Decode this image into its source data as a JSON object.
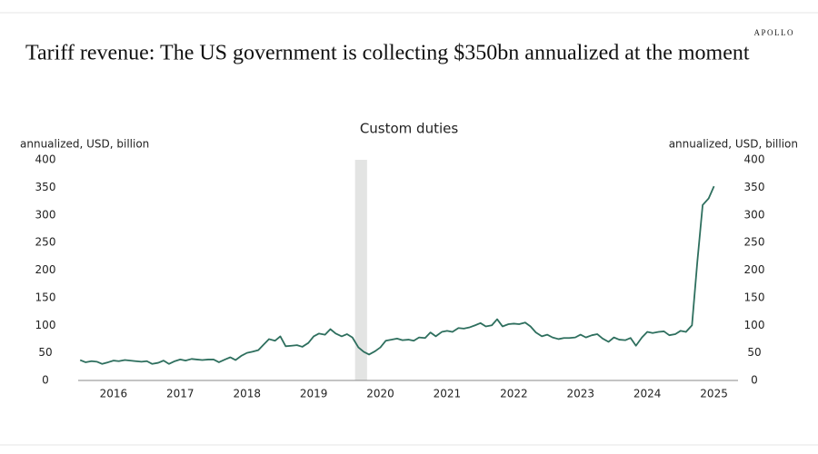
{
  "brand": "APOLLO",
  "chart_data": {
    "type": "line",
    "title": "Tariff revenue: The US government is collecting $350bn annualized at the moment",
    "subtitle": "Custom duties",
    "y_label": "annualized, USD, billion",
    "y2_label": "annualized, USD, billion",
    "xlim": [
      2015.97,
      2025.86
    ],
    "xticks": [
      {
        "value": 2016.5,
        "label": "2016"
      },
      {
        "value": 2017.5,
        "label": "2017"
      },
      {
        "value": 2018.5,
        "label": "2018"
      },
      {
        "value": 2019.5,
        "label": "2019"
      },
      {
        "value": 2020.5,
        "label": "2020"
      },
      {
        "value": 2021.5,
        "label": "2021"
      },
      {
        "value": 2022.5,
        "label": "2022"
      },
      {
        "value": 2023.5,
        "label": "2023"
      },
      {
        "value": 2024.5,
        "label": "2024"
      },
      {
        "value": 2025.5,
        "label": "2025"
      }
    ],
    "ylim": [
      0,
      400
    ],
    "yticks": [
      0,
      50,
      100,
      150,
      200,
      250,
      300,
      350,
      400
    ],
    "y2lim": [
      0,
      400
    ],
    "y2ticks": [
      0,
      50,
      100,
      150,
      200,
      250,
      300,
      350,
      400
    ],
    "recession": {
      "x": [
        2020.12,
        2020.3
      ],
      "color": "#e3e4e3"
    },
    "grid": false,
    "series": [
      {
        "name": "Custom duties",
        "color": "#2e6f5e",
        "x": [
          2016,
          2016.08,
          2016.17,
          2016.25,
          2016.33,
          2016.42,
          2016.5,
          2016.58,
          2016.67,
          2016.75,
          2016.83,
          2016.92,
          2017,
          2017.08,
          2017.17,
          2017.25,
          2017.33,
          2017.42,
          2017.5,
          2017.58,
          2017.67,
          2017.75,
          2017.83,
          2017.92,
          2018,
          2018.08,
          2018.17,
          2018.25,
          2018.33,
          2018.42,
          2018.5,
          2018.58,
          2018.67,
          2018.75,
          2018.83,
          2018.92,
          2019,
          2019.08,
          2019.17,
          2019.25,
          2019.33,
          2019.42,
          2019.5,
          2019.58,
          2019.67,
          2019.75,
          2019.83,
          2019.92,
          2020,
          2020.08,
          2020.17,
          2020.25,
          2020.33,
          2020.42,
          2020.5,
          2020.58,
          2020.67,
          2020.75,
          2020.83,
          2020.92,
          2021,
          2021.08,
          2021.17,
          2021.25,
          2021.33,
          2021.42,
          2021.5,
          2021.58,
          2021.67,
          2021.75,
          2021.83,
          2021.92,
          2022,
          2022.08,
          2022.17,
          2022.25,
          2022.33,
          2022.42,
          2022.5,
          2022.58,
          2022.67,
          2022.75,
          2022.83,
          2022.92,
          2023,
          2023.08,
          2023.17,
          2023.25,
          2023.33,
          2023.42,
          2023.5,
          2023.58,
          2023.67,
          2023.75,
          2023.83,
          2023.92,
          2024,
          2024.08,
          2024.17,
          2024.25,
          2024.33,
          2024.42,
          2024.5,
          2024.58,
          2024.67,
          2024.75,
          2024.83,
          2024.92,
          2025,
          2025.08,
          2025.17,
          2025.25,
          2025.33,
          2025.42,
          2025.5
        ],
        "values": [
          37,
          33,
          35,
          34,
          30,
          33,
          36,
          35,
          37,
          36,
          35,
          34,
          35,
          30,
          32,
          36,
          30,
          35,
          38,
          36,
          39,
          38,
          37,
          38,
          38,
          33,
          38,
          42,
          37,
          45,
          50,
          52,
          55,
          65,
          75,
          72,
          80,
          62,
          63,
          64,
          61,
          68,
          80,
          85,
          83,
          93,
          85,
          80,
          84,
          78,
          60,
          52,
          47,
          53,
          60,
          72,
          74,
          76,
          73,
          74,
          72,
          78,
          77,
          87,
          80,
          88,
          90,
          88,
          95,
          94,
          96,
          100,
          104,
          98,
          100,
          111,
          98,
          102,
          103,
          102,
          105,
          98,
          87,
          80,
          83,
          78,
          75,
          77,
          77,
          78,
          83,
          78,
          82,
          84,
          76,
          70,
          78,
          74,
          73,
          77,
          63,
          78,
          88,
          86,
          88,
          89,
          82,
          84,
          90,
          88,
          100,
          215,
          318,
          330,
          352
        ]
      }
    ]
  }
}
